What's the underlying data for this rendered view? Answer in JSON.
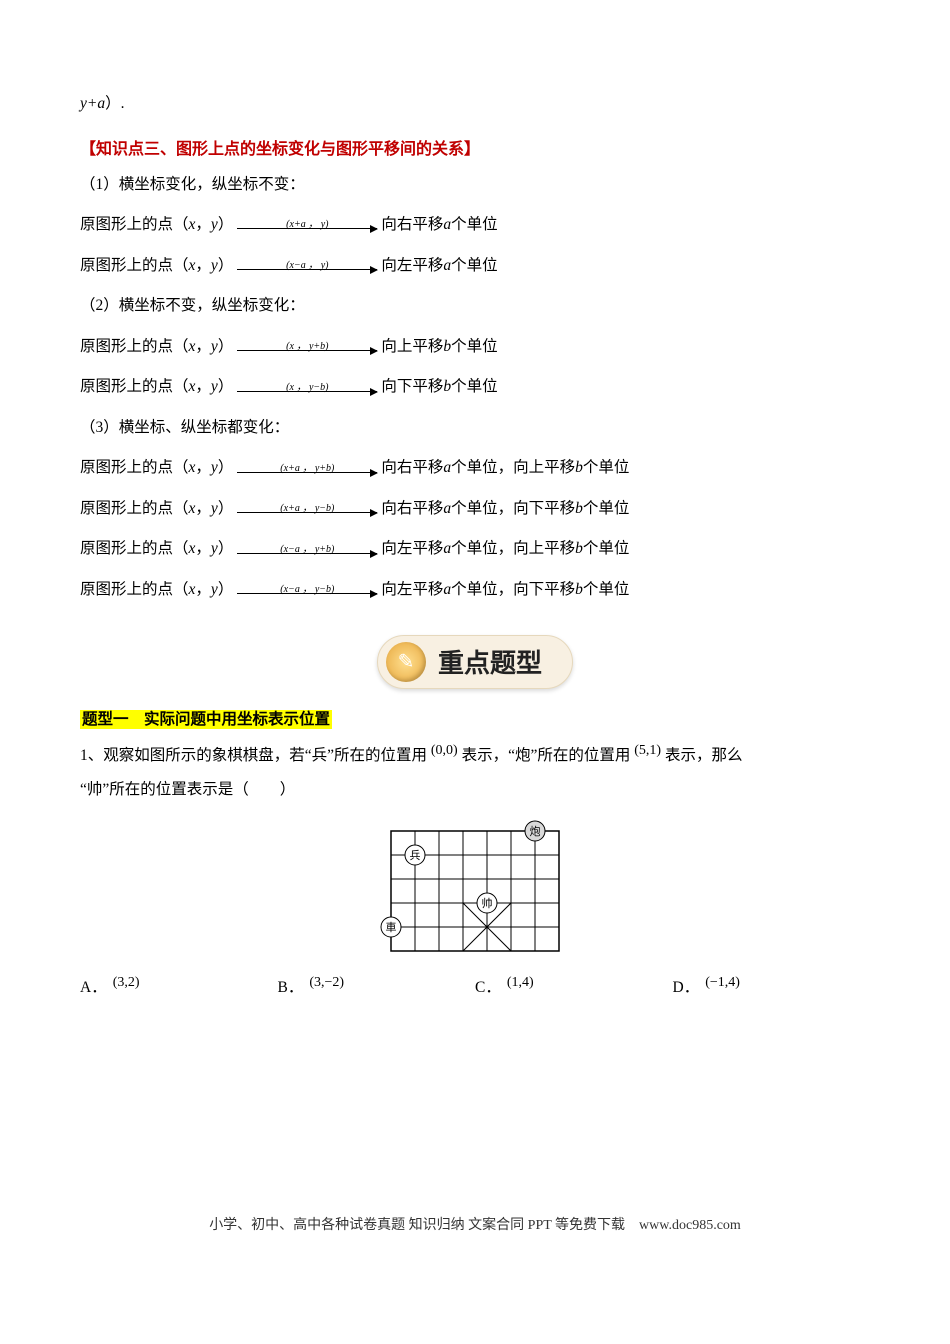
{
  "topline": {
    "prefix": "y+a",
    "suffix": "）."
  },
  "section3_title": "【知识点三、图形上点的坐标变化与图形平移间的关系】",
  "case1": {
    "head": "（1）横坐标变化，纵坐标不变："
  },
  "case2": {
    "head": "（2）横坐标不变，纵坐标变化："
  },
  "case3": {
    "head": "（3）横坐标、纵坐标都变化："
  },
  "stem_prefix": "原图形上的点（",
  "stem_x": "x",
  "stem_comma": "，",
  "stem_y": "y",
  "stem_suffix": "）",
  "rules": {
    "r1": {
      "formula": "(x+a ， y)",
      "result_pre": "向右平移 ",
      "result_var": "a",
      "result_post": " 个单位"
    },
    "r2": {
      "formula": "(x−a ， y)",
      "result_pre": "向左平移 ",
      "result_var": "a",
      "result_post": " 个单位"
    },
    "r3": {
      "formula": "(x ， y+b)",
      "result_pre": "向上平移 ",
      "result_var": "b",
      "result_post": " 个单位"
    },
    "r4": {
      "formula": "(x ， y−b)",
      "result_pre": "向下平移 ",
      "result_var": "b",
      "result_post": " 个单位"
    },
    "r5": {
      "formula": "(x+a ， y+b)",
      "result_pre": "向右平移 ",
      "result_var": "a",
      "result_mid": " 个单位，向上平移 ",
      "result_var2": "b",
      "result_post": " 个单位"
    },
    "r6": {
      "formula": "(x+a ， y−b)",
      "result_pre": "向右平移 ",
      "result_var": "a",
      "result_mid": " 个单位，向下平移 ",
      "result_var2": "b",
      "result_post": " 个单位"
    },
    "r7": {
      "formula": "(x−a ， y+b)",
      "result_pre": "向左平移 ",
      "result_var": "a",
      "result_mid": " 个单位，向上平移 ",
      "result_var2": "b",
      "result_post": " 个单位"
    },
    "r8": {
      "formula": "(x−a ， y−b)",
      "result_pre": "向左平移 ",
      "result_var": "a",
      "result_mid": " 个单位，向下平移 ",
      "result_var2": "b",
      "result_post": " 个单位"
    }
  },
  "banner": "重点题型",
  "topic1": "题型一　实际问题中用坐标表示位置",
  "q1": {
    "text_a": "1、观察如图所示的象棋棋盘，若“兵”所在的位置用",
    "coord1": "(0,0)",
    "text_b": "表示，“炮”所在的位置用",
    "coord2": "(5,1)",
    "text_c": "表示，那么",
    "text_d": "“帅”所在的位置表示是（　　）"
  },
  "chess": {
    "cols": 7,
    "rows": 5,
    "cell": 24,
    "soldier": {
      "label": "兵",
      "col": 1,
      "row": 1
    },
    "cannon": {
      "label": "炮",
      "col": 6,
      "row": 0
    },
    "general": {
      "label": "帅",
      "col": 4,
      "row": 3
    },
    "rook": {
      "label": "車",
      "col": 0,
      "row": 4
    },
    "palace_center_col": 4
  },
  "options": {
    "A": {
      "label": "A．",
      "coord": "(3,2)"
    },
    "B": {
      "label": "B．",
      "coord": "(3,−2)"
    },
    "C": {
      "label": "C．",
      "coord": "(1,4)"
    },
    "D": {
      "label": "D．",
      "coord": "(−1,4)"
    }
  },
  "footer": "小学、初中、高中各种试卷真题  知识归纳  文案合同  PPT 等免费下载　www.doc985.com",
  "colors": {
    "title": "#c00000",
    "highlight_bg": "#ffff00",
    "banner_bg": "#f8f0e2",
    "banner_icon_start": "#ffdf8f",
    "banner_icon_end": "#e6a63c"
  }
}
